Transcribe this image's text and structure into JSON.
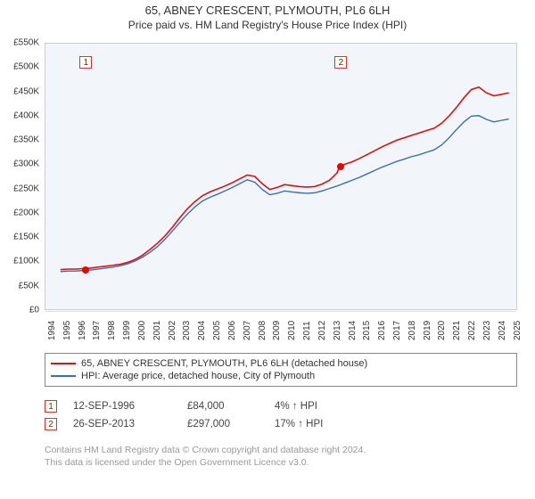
{
  "title": "65, ABNEY CRESCENT, PLYMOUTH, PL6 6LH",
  "subtitle": "Price paid vs. HM Land Registry's House Price Index (HPI)",
  "chart": {
    "type": "line",
    "background_color": "#ffffff",
    "plot_background_color": "#f2f6fb",
    "grid_color": "#dddddd",
    "vertical_grid_color": "#ffffff",
    "border_color": "#cccccc",
    "x": {
      "label_fontsize": 10,
      "label_rotation": -90,
      "min": 1994,
      "max": 2025.5,
      "ticks": [
        1994,
        1995,
        1996,
        1997,
        1998,
        1999,
        2000,
        2001,
        2002,
        2003,
        2004,
        2005,
        2006,
        2007,
        2008,
        2009,
        2010,
        2011,
        2012,
        2013,
        2014,
        2015,
        2016,
        2017,
        2018,
        2019,
        2020,
        2021,
        2022,
        2023,
        2024,
        2025
      ]
    },
    "y": {
      "label_fontsize": 10,
      "min": 0,
      "max": 550000,
      "tick_step": 50000,
      "tick_labels": [
        "£0",
        "£50K",
        "£100K",
        "£150K",
        "£200K",
        "£250K",
        "£300K",
        "£350K",
        "£400K",
        "£450K",
        "£500K",
        "£550K"
      ]
    },
    "zones": [
      {
        "from": 1996.5,
        "to": 1996.9,
        "color": "#fff5e0"
      },
      {
        "from": 2013.5,
        "to": 2013.9,
        "color": "#fff5e0"
      }
    ],
    "markers": [
      {
        "label": "1",
        "year": 1996.7,
        "price": 84000,
        "top": 14
      },
      {
        "label": "2",
        "year": 2013.7,
        "price": 297000,
        "top": 14
      }
    ],
    "marker_point_color": "#ee0000",
    "series": [
      {
        "name": "property",
        "label": "65, ABNEY CRESCENT, PLYMOUTH, PL6 6LH (detached house)",
        "color": "#dd1111",
        "line_width": 1.6,
        "data": [
          [
            1995.0,
            82000
          ],
          [
            1995.5,
            83000
          ],
          [
            1996.0,
            83000
          ],
          [
            1996.5,
            84000
          ],
          [
            1996.7,
            84000
          ],
          [
            1997.0,
            85000
          ],
          [
            1997.5,
            87000
          ],
          [
            1998.0,
            89000
          ],
          [
            1998.5,
            91000
          ],
          [
            1999.0,
            93000
          ],
          [
            1999.5,
            97000
          ],
          [
            2000.0,
            103000
          ],
          [
            2000.5,
            112000
          ],
          [
            2001.0,
            124000
          ],
          [
            2001.5,
            137000
          ],
          [
            2002.0,
            152000
          ],
          [
            2002.5,
            170000
          ],
          [
            2003.0,
            190000
          ],
          [
            2003.5,
            208000
          ],
          [
            2004.0,
            223000
          ],
          [
            2004.5,
            235000
          ],
          [
            2005.0,
            243000
          ],
          [
            2005.5,
            249000
          ],
          [
            2006.0,
            255000
          ],
          [
            2006.5,
            262000
          ],
          [
            2007.0,
            270000
          ],
          [
            2007.5,
            278000
          ],
          [
            2008.0,
            275000
          ],
          [
            2008.5,
            260000
          ],
          [
            2009.0,
            248000
          ],
          [
            2009.5,
            252000
          ],
          [
            2010.0,
            258000
          ],
          [
            2010.5,
            256000
          ],
          [
            2011.0,
            254000
          ],
          [
            2011.5,
            253000
          ],
          [
            2012.0,
            254000
          ],
          [
            2012.5,
            259000
          ],
          [
            2013.0,
            267000
          ],
          [
            2013.5,
            282000
          ],
          [
            2013.7,
            297000
          ],
          [
            2014.0,
            300000
          ],
          [
            2014.5,
            305000
          ],
          [
            2015.0,
            312000
          ],
          [
            2015.5,
            320000
          ],
          [
            2016.0,
            328000
          ],
          [
            2016.5,
            336000
          ],
          [
            2017.0,
            343000
          ],
          [
            2017.5,
            350000
          ],
          [
            2018.0,
            355000
          ],
          [
            2018.5,
            360000
          ],
          [
            2019.0,
            365000
          ],
          [
            2019.5,
            370000
          ],
          [
            2020.0,
            375000
          ],
          [
            2020.5,
            385000
          ],
          [
            2021.0,
            400000
          ],
          [
            2021.5,
            418000
          ],
          [
            2022.0,
            438000
          ],
          [
            2022.5,
            455000
          ],
          [
            2023.0,
            460000
          ],
          [
            2023.5,
            448000
          ],
          [
            2024.0,
            442000
          ],
          [
            2024.5,
            445000
          ],
          [
            2025.0,
            448000
          ]
        ]
      },
      {
        "name": "hpi",
        "label": "HPI: Average price, detached house, City of Plymouth",
        "color": "#3b6db5",
        "line_width": 1.4,
        "data": [
          [
            1995.0,
            78000
          ],
          [
            1995.5,
            79000
          ],
          [
            1996.0,
            79000
          ],
          [
            1996.5,
            80000
          ],
          [
            1997.0,
            81000
          ],
          [
            1997.5,
            83000
          ],
          [
            1998.0,
            85000
          ],
          [
            1998.5,
            87000
          ],
          [
            1999.0,
            90000
          ],
          [
            1999.5,
            94000
          ],
          [
            2000.0,
            100000
          ],
          [
            2000.5,
            108000
          ],
          [
            2001.0,
            118000
          ],
          [
            2001.5,
            130000
          ],
          [
            2002.0,
            145000
          ],
          [
            2002.5,
            162000
          ],
          [
            2003.0,
            180000
          ],
          [
            2003.5,
            197000
          ],
          [
            2004.0,
            212000
          ],
          [
            2004.5,
            224000
          ],
          [
            2005.0,
            232000
          ],
          [
            2005.5,
            238000
          ],
          [
            2006.0,
            245000
          ],
          [
            2006.5,
            252000
          ],
          [
            2007.0,
            260000
          ],
          [
            2007.5,
            268000
          ],
          [
            2008.0,
            263000
          ],
          [
            2008.5,
            248000
          ],
          [
            2009.0,
            237000
          ],
          [
            2009.5,
            240000
          ],
          [
            2010.0,
            245000
          ],
          [
            2010.5,
            243000
          ],
          [
            2011.0,
            241000
          ],
          [
            2011.5,
            240000
          ],
          [
            2012.0,
            241000
          ],
          [
            2012.5,
            245000
          ],
          [
            2013.0,
            250000
          ],
          [
            2013.5,
            255000
          ],
          [
            2014.0,
            261000
          ],
          [
            2014.5,
            267000
          ],
          [
            2015.0,
            273000
          ],
          [
            2015.5,
            280000
          ],
          [
            2016.0,
            287000
          ],
          [
            2016.5,
            294000
          ],
          [
            2017.0,
            300000
          ],
          [
            2017.5,
            306000
          ],
          [
            2018.0,
            311000
          ],
          [
            2018.5,
            316000
          ],
          [
            2019.0,
            320000
          ],
          [
            2019.5,
            325000
          ],
          [
            2020.0,
            330000
          ],
          [
            2020.5,
            340000
          ],
          [
            2021.0,
            355000
          ],
          [
            2021.5,
            372000
          ],
          [
            2022.0,
            388000
          ],
          [
            2022.5,
            400000
          ],
          [
            2023.0,
            401000
          ],
          [
            2023.5,
            393000
          ],
          [
            2024.0,
            388000
          ],
          [
            2024.5,
            391000
          ],
          [
            2025.0,
            394000
          ]
        ]
      }
    ]
  },
  "legend": {
    "border_color": "#888888",
    "fontsize": 11
  },
  "sales": [
    {
      "badge": "1",
      "date": "12-SEP-1996",
      "price": "£84,000",
      "hpi": "4% ↑ HPI"
    },
    {
      "badge": "2",
      "date": "26-SEP-2013",
      "price": "£297,000",
      "hpi": "17% ↑ HPI"
    }
  ],
  "footer": {
    "line1": "Contains HM Land Registry data © Crown copyright and database right 2024.",
    "line2": "This data is licensed under the Open Government Licence v3.0."
  }
}
